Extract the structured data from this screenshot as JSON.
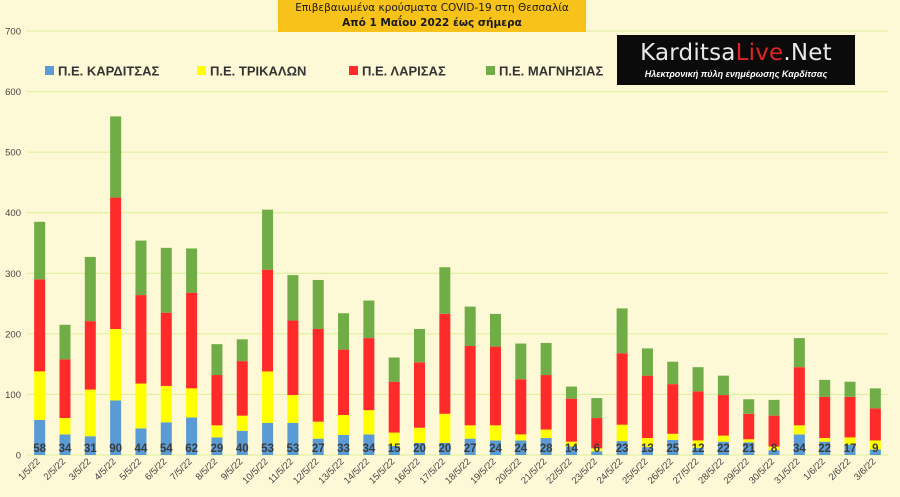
{
  "chart_data": {
    "type": "bar",
    "stacked": true,
    "title": "Επιβεβαιωμένα κρούσματα COVID-19 στη Θεσσαλία",
    "subtitle": "Από 1 Μαΐου 2022 έως σήμερα",
    "categories": [
      "1/5/22",
      "2/5/22",
      "3/5/22",
      "4/5/22",
      "5/5/22",
      "6/5/22",
      "7/5/22",
      "8/5/22",
      "9/5/22",
      "10/5/22",
      "11/5/22",
      "12/5/22",
      "13/5/22",
      "14/5/22",
      "15/5/22",
      "16/5/22",
      "17/5/22",
      "18/5/22",
      "19/5/22",
      "20/5/22",
      "21/5/22",
      "22/5/22",
      "23/5/22",
      "24/5/22",
      "25/5/22",
      "26/5/22",
      "27/5/22",
      "28/5/22",
      "29/5/22",
      "30/5/22",
      "31/5/22",
      "1/6/22",
      "2/6/22",
      "3/6/22"
    ],
    "series": [
      {
        "name": "Π.Ε. ΚΑΡΔΙΤΣΑΣ",
        "color": "#5b9bd5",
        "values": [
          58,
          34,
          31,
          90,
          44,
          54,
          62,
          29,
          40,
          53,
          53,
          27,
          33,
          34,
          15,
          20,
          20,
          27,
          24,
          24,
          28,
          14,
          6,
          23,
          13,
          25,
          12,
          22,
          21,
          8,
          34,
          22,
          17,
          9
        ]
      },
      {
        "name": "Π.Ε. ΤΡΙΚΑΛΩΝ",
        "color": "#ffff00",
        "values": [
          80,
          27,
          77,
          118,
          74,
          60,
          48,
          20,
          25,
          85,
          46,
          28,
          33,
          40,
          22,
          25,
          48,
          22,
          25,
          10,
          14,
          8,
          5,
          27,
          15,
          10,
          12,
          10,
          5,
          6,
          15,
          6,
          12,
          15
        ]
      },
      {
        "name": "Π.Ε. ΛΑΡΙΣΑΣ",
        "color": "#ff2a2a",
        "values": [
          152,
          97,
          113,
          217,
          146,
          121,
          158,
          83,
          90,
          168,
          123,
          153,
          108,
          119,
          84,
          108,
          165,
          131,
          130,
          91,
          90,
          71,
          50,
          118,
          103,
          82,
          81,
          67,
          42,
          51,
          96,
          68,
          67,
          53
        ]
      },
      {
        "name": "Π.Ε. ΜΑΓΝΗΣΙΑΣ",
        "color": "#70ad47",
        "values": [
          95,
          57,
          106,
          134,
          90,
          107,
          73,
          51,
          36,
          99,
          75,
          81,
          60,
          62,
          40,
          55,
          77,
          65,
          54,
          59,
          53,
          20,
          33,
          74,
          45,
          37,
          40,
          32,
          24,
          26,
          48,
          28,
          25,
          33
        ]
      }
    ],
    "data_labels_series": "Π.Ε. ΚΑΡΔΙΤΣΑΣ",
    "ylim": [
      0,
      700
    ],
    "yticks": [
      0,
      100,
      200,
      300,
      400,
      500,
      600,
      700
    ],
    "grid": true,
    "gridline_color": "#d9ef96",
    "legend_position": "top-left",
    "xlabel": "",
    "ylabel": ""
  },
  "logo": {
    "brand_black": "Karditsa",
    "brand_red": "Live",
    "brand_tail": ".Net",
    "tagline": "Ηλεκτρονική πύλη ενημέρωσης Καρδίτσας"
  }
}
